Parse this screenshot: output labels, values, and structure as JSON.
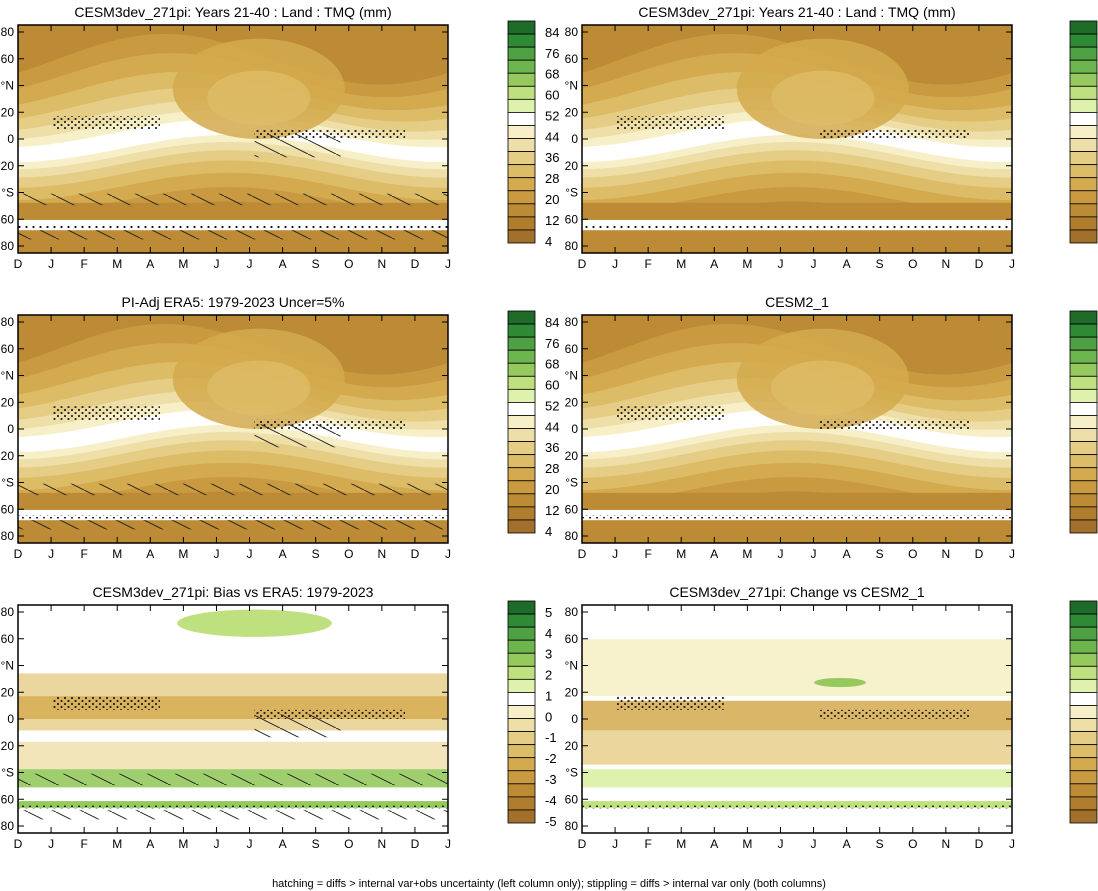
{
  "months": [
    "D",
    "J",
    "F",
    "M",
    "A",
    "M",
    "J",
    "J",
    "A",
    "S",
    "O",
    "N",
    "D",
    "J"
  ],
  "lat_ticks": [
    "80",
    "60",
    "°N",
    "20",
    "0",
    "20",
    "°S",
    "60",
    "80"
  ],
  "footer": "hatching = diffs > internal var+obs uncertainty (left column only); stippling = diffs > internal var only (both columns)",
  "colorbars": {
    "abs": {
      "labels": [
        "84",
        "76",
        "68",
        "60",
        "52",
        "44",
        "36",
        "28",
        "20",
        "12",
        "4"
      ],
      "colors": [
        "#1f6b2a",
        "#2f8a36",
        "#4ea042",
        "#6db54f",
        "#95c95e",
        "#bfe07f",
        "#dff2ad",
        "#ffffff",
        "#f6efc7",
        "#eedfa8",
        "#e6cd86",
        "#ddbc67",
        "#d4aa4e",
        "#c99a3f",
        "#bd8a35",
        "#b07c2e",
        "#a2702b"
      ]
    },
    "diff": {
      "labels": [
        "5",
        "4",
        "3",
        "2",
        "1",
        "0",
        "-1",
        "-2",
        "-3",
        "-4",
        "-5"
      ],
      "colors": [
        "#1f6b2a",
        "#2f8a36",
        "#4ea042",
        "#6db54f",
        "#95c95e",
        "#bfe07f",
        "#dff2ad",
        "#ffffff",
        "#f6efc7",
        "#eedfa8",
        "#e6cd86",
        "#ddbc67",
        "#d4aa4e",
        "#c99a3f",
        "#bd8a35",
        "#b07c2e",
        "#a2702b"
      ]
    }
  },
  "chart_data": [
    {
      "type": "heatmap",
      "title": "CESM3dev_271pi: Years 21-40 : Land : TMQ (mm)",
      "kind": "abs",
      "hatch": true,
      "stipple": true,
      "x": [
        "D",
        "J",
        "F",
        "M",
        "A",
        "M",
        "J",
        "J",
        "A",
        "S",
        "O",
        "N",
        "D",
        "J"
      ],
      "colorbar": "abs"
    },
    {
      "type": "heatmap",
      "title": "CESM3dev_271pi: Years 21-40 : Land : TMQ (mm)",
      "kind": "abs",
      "hatch": false,
      "stipple": true,
      "x": [
        "D",
        "J",
        "F",
        "M",
        "A",
        "M",
        "J",
        "J",
        "A",
        "S",
        "O",
        "N",
        "D",
        "J"
      ],
      "colorbar": "abs"
    },
    {
      "type": "heatmap",
      "title": "PI-Adj ERA5: 1979-2023 Uncer=5%",
      "kind": "abs",
      "hatch": true,
      "stipple": true,
      "x": [
        "D",
        "J",
        "F",
        "M",
        "A",
        "M",
        "J",
        "J",
        "A",
        "S",
        "O",
        "N",
        "D",
        "J"
      ],
      "colorbar": "abs"
    },
    {
      "type": "heatmap",
      "title": "CESM2_1",
      "kind": "abs",
      "hatch": false,
      "stipple": true,
      "x": [
        "D",
        "J",
        "F",
        "M",
        "A",
        "M",
        "J",
        "J",
        "A",
        "S",
        "O",
        "N",
        "D",
        "J"
      ],
      "colorbar": "abs"
    },
    {
      "type": "heatmap",
      "title": "CESM3dev_271pi: Bias vs ERA5: 1979-2023",
      "kind": "bias",
      "hatch": true,
      "stipple": true,
      "x": [
        "D",
        "J",
        "F",
        "M",
        "A",
        "M",
        "J",
        "J",
        "A",
        "S",
        "O",
        "N",
        "D",
        "J"
      ],
      "colorbar": "diff"
    },
    {
      "type": "heatmap",
      "title": "CESM3dev_271pi: Change vs CESM2_1",
      "kind": "change",
      "hatch": false,
      "stipple": true,
      "x": [
        "D",
        "J",
        "F",
        "M",
        "A",
        "M",
        "J",
        "J",
        "A",
        "S",
        "O",
        "N",
        "D",
        "J"
      ],
      "colorbar": "diff"
    }
  ]
}
